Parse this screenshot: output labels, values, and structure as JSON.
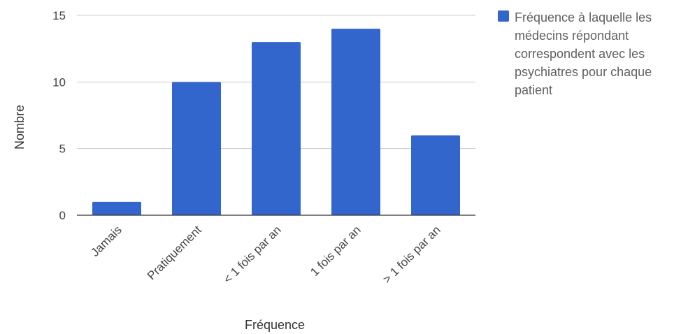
{
  "chart_data": {
    "type": "bar",
    "title": "",
    "xlabel": "Fréquence",
    "ylabel": "Nombre",
    "categories": [
      "Jamais",
      "Pratiquement",
      "< 1 fois par an",
      "1 fois par an",
      "> 1 fois par an"
    ],
    "series": [
      {
        "name": "Fréquence à laquelle les médecins répondant correspondent avec les psychiatres pour chaque patient",
        "values": [
          1,
          10,
          13,
          14,
          6
        ],
        "color": "#3366CC"
      }
    ],
    "ylim": [
      0,
      15
    ],
    "y_ticks": [
      "0",
      "5",
      "10",
      "15"
    ],
    "grid": true,
    "legend_position": "right"
  }
}
